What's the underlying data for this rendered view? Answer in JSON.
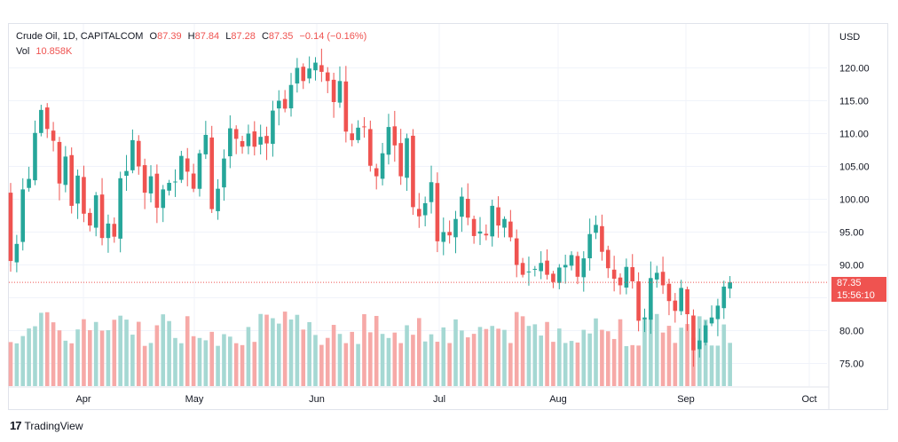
{
  "legend": {
    "symbol": "Crude Oil, 1D, CAPITALCOM",
    "open_label": "O",
    "open_value": "87.39",
    "high_label": "H",
    "high_value": "87.84",
    "low_label": "L",
    "low_value": "87.28",
    "close_label": "C",
    "close_value": "87.35",
    "change": "−0.14 (−0.16%)",
    "vol_label": "Vol",
    "vol_value": "10.858K"
  },
  "price_tag": {
    "price": "87.35",
    "countdown": "15:56:10"
  },
  "brand": "TradingView",
  "colors": {
    "up": "#26a69a",
    "down": "#ef5350",
    "up_volume": "#a5d8d3",
    "down_volume": "#f6a9a7",
    "grid": "#f0f3fa"
  },
  "chart_data": {
    "type": "candlestick",
    "symbol": "Crude Oil",
    "interval": "1D",
    "currency": "USD",
    "y_axis": {
      "label": "USD",
      "ticks": [
        "75.00",
        "80.00",
        "85.00",
        "90.00",
        "95.00",
        "100.00",
        "105.00",
        "110.00",
        "115.00",
        "120.00"
      ],
      "min": 71.5,
      "max": 123.5
    },
    "x_axis": {
      "ticks": [
        "Apr",
        "May",
        "Jun",
        "Jul",
        "Aug",
        "Sep",
        "Oct"
      ]
    },
    "last_price": 87.35,
    "grid": true,
    "closes": [
      90.6,
      93.2,
      101.5,
      103.1,
      110.1,
      113.6,
      110.7,
      108.9,
      102.4,
      106.5,
      99.0,
      103.6,
      97.8,
      96.0,
      100.6,
      94.1,
      96.3,
      94.3,
      103.2,
      104.3,
      109.0,
      105.0,
      101.0,
      103.5,
      98.7,
      101.5,
      102.5,
      102.7,
      106.6,
      104.2,
      101.6,
      107.0,
      109.8,
      98.5,
      101.6,
      106.2,
      110.8,
      109.2,
      108.0,
      110.0,
      108.0,
      109.5,
      108.5,
      113.5,
      115.0,
      113.8,
      117.4,
      120.0,
      118.0,
      119.9,
      120.8,
      119.4,
      118.0,
      114.8,
      118.0,
      110.3,
      109.0,
      110.9,
      111.0,
      105.1,
      103.5,
      107.0,
      111.0,
      108.2,
      103.5,
      109.3,
      98.8,
      97.4,
      99.4,
      102.6,
      93.6,
      95.0,
      94.5,
      97.0,
      100.4,
      97.2,
      94.4,
      95.1,
      94.5,
      99.0,
      96.0,
      97.0,
      94.2,
      90.0,
      88.5,
      89.0,
      89.4,
      90.3,
      88.5,
      87.4,
      89.6,
      90.0,
      91.5,
      88.2,
      91.0,
      94.7,
      96.1,
      92.0,
      89.5,
      87.9,
      86.9,
      89.7,
      87.5,
      81.5,
      82.0,
      88.0,
      88.8,
      86.9,
      84.5,
      83.0,
      86.5,
      82.5,
      77.0,
      78.5,
      80.8,
      82.0,
      83.8,
      86.7,
      87.35
    ]
  }
}
